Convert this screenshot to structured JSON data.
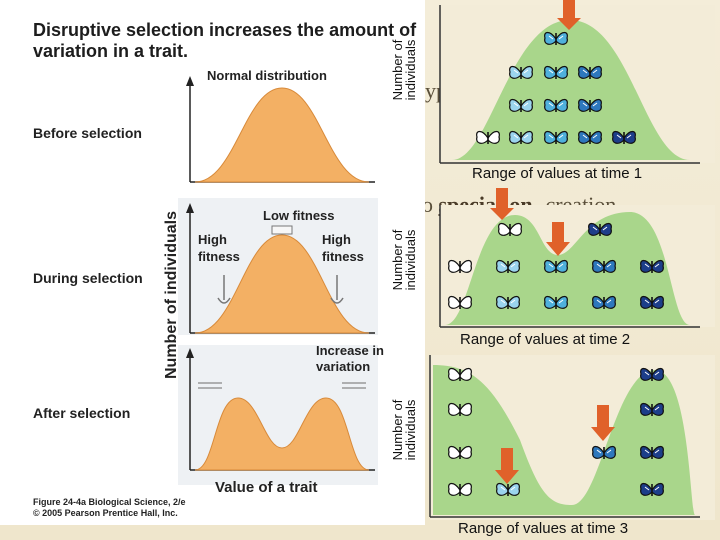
{
  "left_figure": {
    "title": "Disruptive selection increases the amount of variation in a trait.",
    "rows": {
      "before": "Before selection",
      "during": "During selection",
      "after": "After selection"
    },
    "annotations": {
      "normal_distribution": "Normal distribution",
      "low_fitness": "Low fitness",
      "high_fitness_left": "High fitness",
      "high_fitness_right": "High fitness",
      "increase_in_variation": "Increase in variation"
    },
    "y_axis_label": "Number of individuals",
    "x_axis_label": "Value of a trait",
    "credit_line1": "Figure 24-4a Biological Science, 2/e",
    "credit_line2": "© 2005 Pearson Prentice Hall, Inc."
  },
  "background_text": {
    "fragment1": "ypes and",
    "fragment2_prefix": "o ",
    "fragment2_keyword": "speciation",
    "fragment2_suffix": "- creation"
  },
  "right_panels": [
    {
      "y_label": "Number of individuals",
      "x_label": "Range of values at time 1"
    },
    {
      "y_label": "Number of individuals",
      "x_label": "Range of values at time 2"
    },
    {
      "y_label": "Number of individuals",
      "x_label": "Range of values at time 3"
    }
  ],
  "colors": {
    "curve_fill": "#f3b064",
    "panel_green": "#a9d68b",
    "arrow_orange": "#e0612a",
    "butterfly_light": "#4fb0dc",
    "butterfly_dark": "#1d3e8a"
  }
}
